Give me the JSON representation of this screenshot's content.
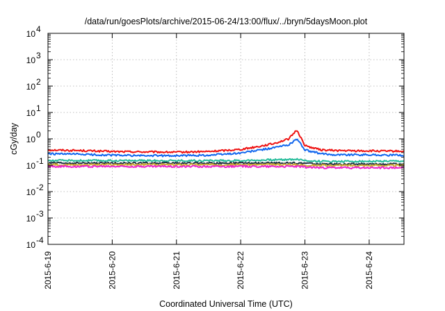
{
  "chart_data": {
    "type": "line",
    "title": "/data/run/goesPlots/archive/2015-06-24/13:00/flux/../bryn/5daysMoon.plot",
    "xlabel": "Coordinated Universal Time (UTC)",
    "ylabel": "cGy/day",
    "yscale": "log",
    "ylim": [
      0.0001,
      10000
    ],
    "xlim": [
      "2015-06-19",
      "2015-06-24 13:00"
    ],
    "yticks": [
      {
        "base": "10",
        "exp": "-4"
      },
      {
        "base": "10",
        "exp": "-3"
      },
      {
        "base": "10",
        "exp": "-2"
      },
      {
        "base": "10",
        "exp": "-1"
      },
      {
        "base": "10",
        "exp": "0"
      },
      {
        "base": "10",
        "exp": "1"
      },
      {
        "base": "10",
        "exp": "2"
      },
      {
        "base": "10",
        "exp": "3"
      },
      {
        "base": "10",
        "exp": "4"
      }
    ],
    "xticks": [
      "2015-6-19",
      "2015-6-20",
      "2015-6-21",
      "2015-6-22",
      "2015-6-23",
      "2015-6-24"
    ],
    "grid": true,
    "legend": "none",
    "x": [
      "2015-06-19 00:00",
      "2015-06-19 12:00",
      "2015-06-20 00:00",
      "2015-06-20 12:00",
      "2015-06-21 00:00",
      "2015-06-21 12:00",
      "2015-06-22 00:00",
      "2015-06-22 06:00",
      "2015-06-22 12:00",
      "2015-06-22 18:00",
      "2015-06-22 21:00",
      "2015-06-23 00:00",
      "2015-06-23 06:00",
      "2015-06-23 12:00",
      "2015-06-23 18:00",
      "2015-06-24 00:00",
      "2015-06-24 06:00",
      "2015-06-24 13:00"
    ],
    "series": [
      {
        "color": "#ee1111",
        "values": [
          0.38,
          0.36,
          0.33,
          0.32,
          0.31,
          0.33,
          0.4,
          0.5,
          0.65,
          1.0,
          2.2,
          0.55,
          0.38,
          0.36,
          0.35,
          0.35,
          0.34,
          0.34
        ]
      },
      {
        "color": "#1166ee",
        "values": [
          0.27,
          0.26,
          0.24,
          0.23,
          0.23,
          0.24,
          0.29,
          0.36,
          0.45,
          0.6,
          1.0,
          0.38,
          0.27,
          0.25,
          0.25,
          0.25,
          0.24,
          0.24
        ]
      },
      {
        "color": "#22bb99",
        "values": [
          0.15,
          0.15,
          0.15,
          0.15,
          0.15,
          0.15,
          0.15,
          0.155,
          0.16,
          0.165,
          0.17,
          0.15,
          0.14,
          0.14,
          0.14,
          0.14,
          0.14,
          0.14
        ]
      },
      {
        "color": "#223344",
        "values": [
          0.12,
          0.12,
          0.12,
          0.12,
          0.12,
          0.12,
          0.12,
          0.12,
          0.12,
          0.12,
          0.12,
          0.12,
          0.11,
          0.11,
          0.11,
          0.11,
          0.11,
          0.11
        ]
      },
      {
        "color": "#ccaa33",
        "values": [
          0.105,
          0.105,
          0.105,
          0.105,
          0.105,
          0.105,
          0.105,
          0.105,
          0.105,
          0.105,
          0.105,
          0.1,
          0.098,
          0.098,
          0.098,
          0.098,
          0.098,
          0.098
        ]
      },
      {
        "color": "#ee22cc",
        "values": [
          0.09,
          0.09,
          0.09,
          0.09,
          0.09,
          0.09,
          0.09,
          0.09,
          0.09,
          0.09,
          0.09,
          0.085,
          0.08,
          0.08,
          0.08,
          0.08,
          0.08,
          0.08
        ]
      }
    ]
  }
}
